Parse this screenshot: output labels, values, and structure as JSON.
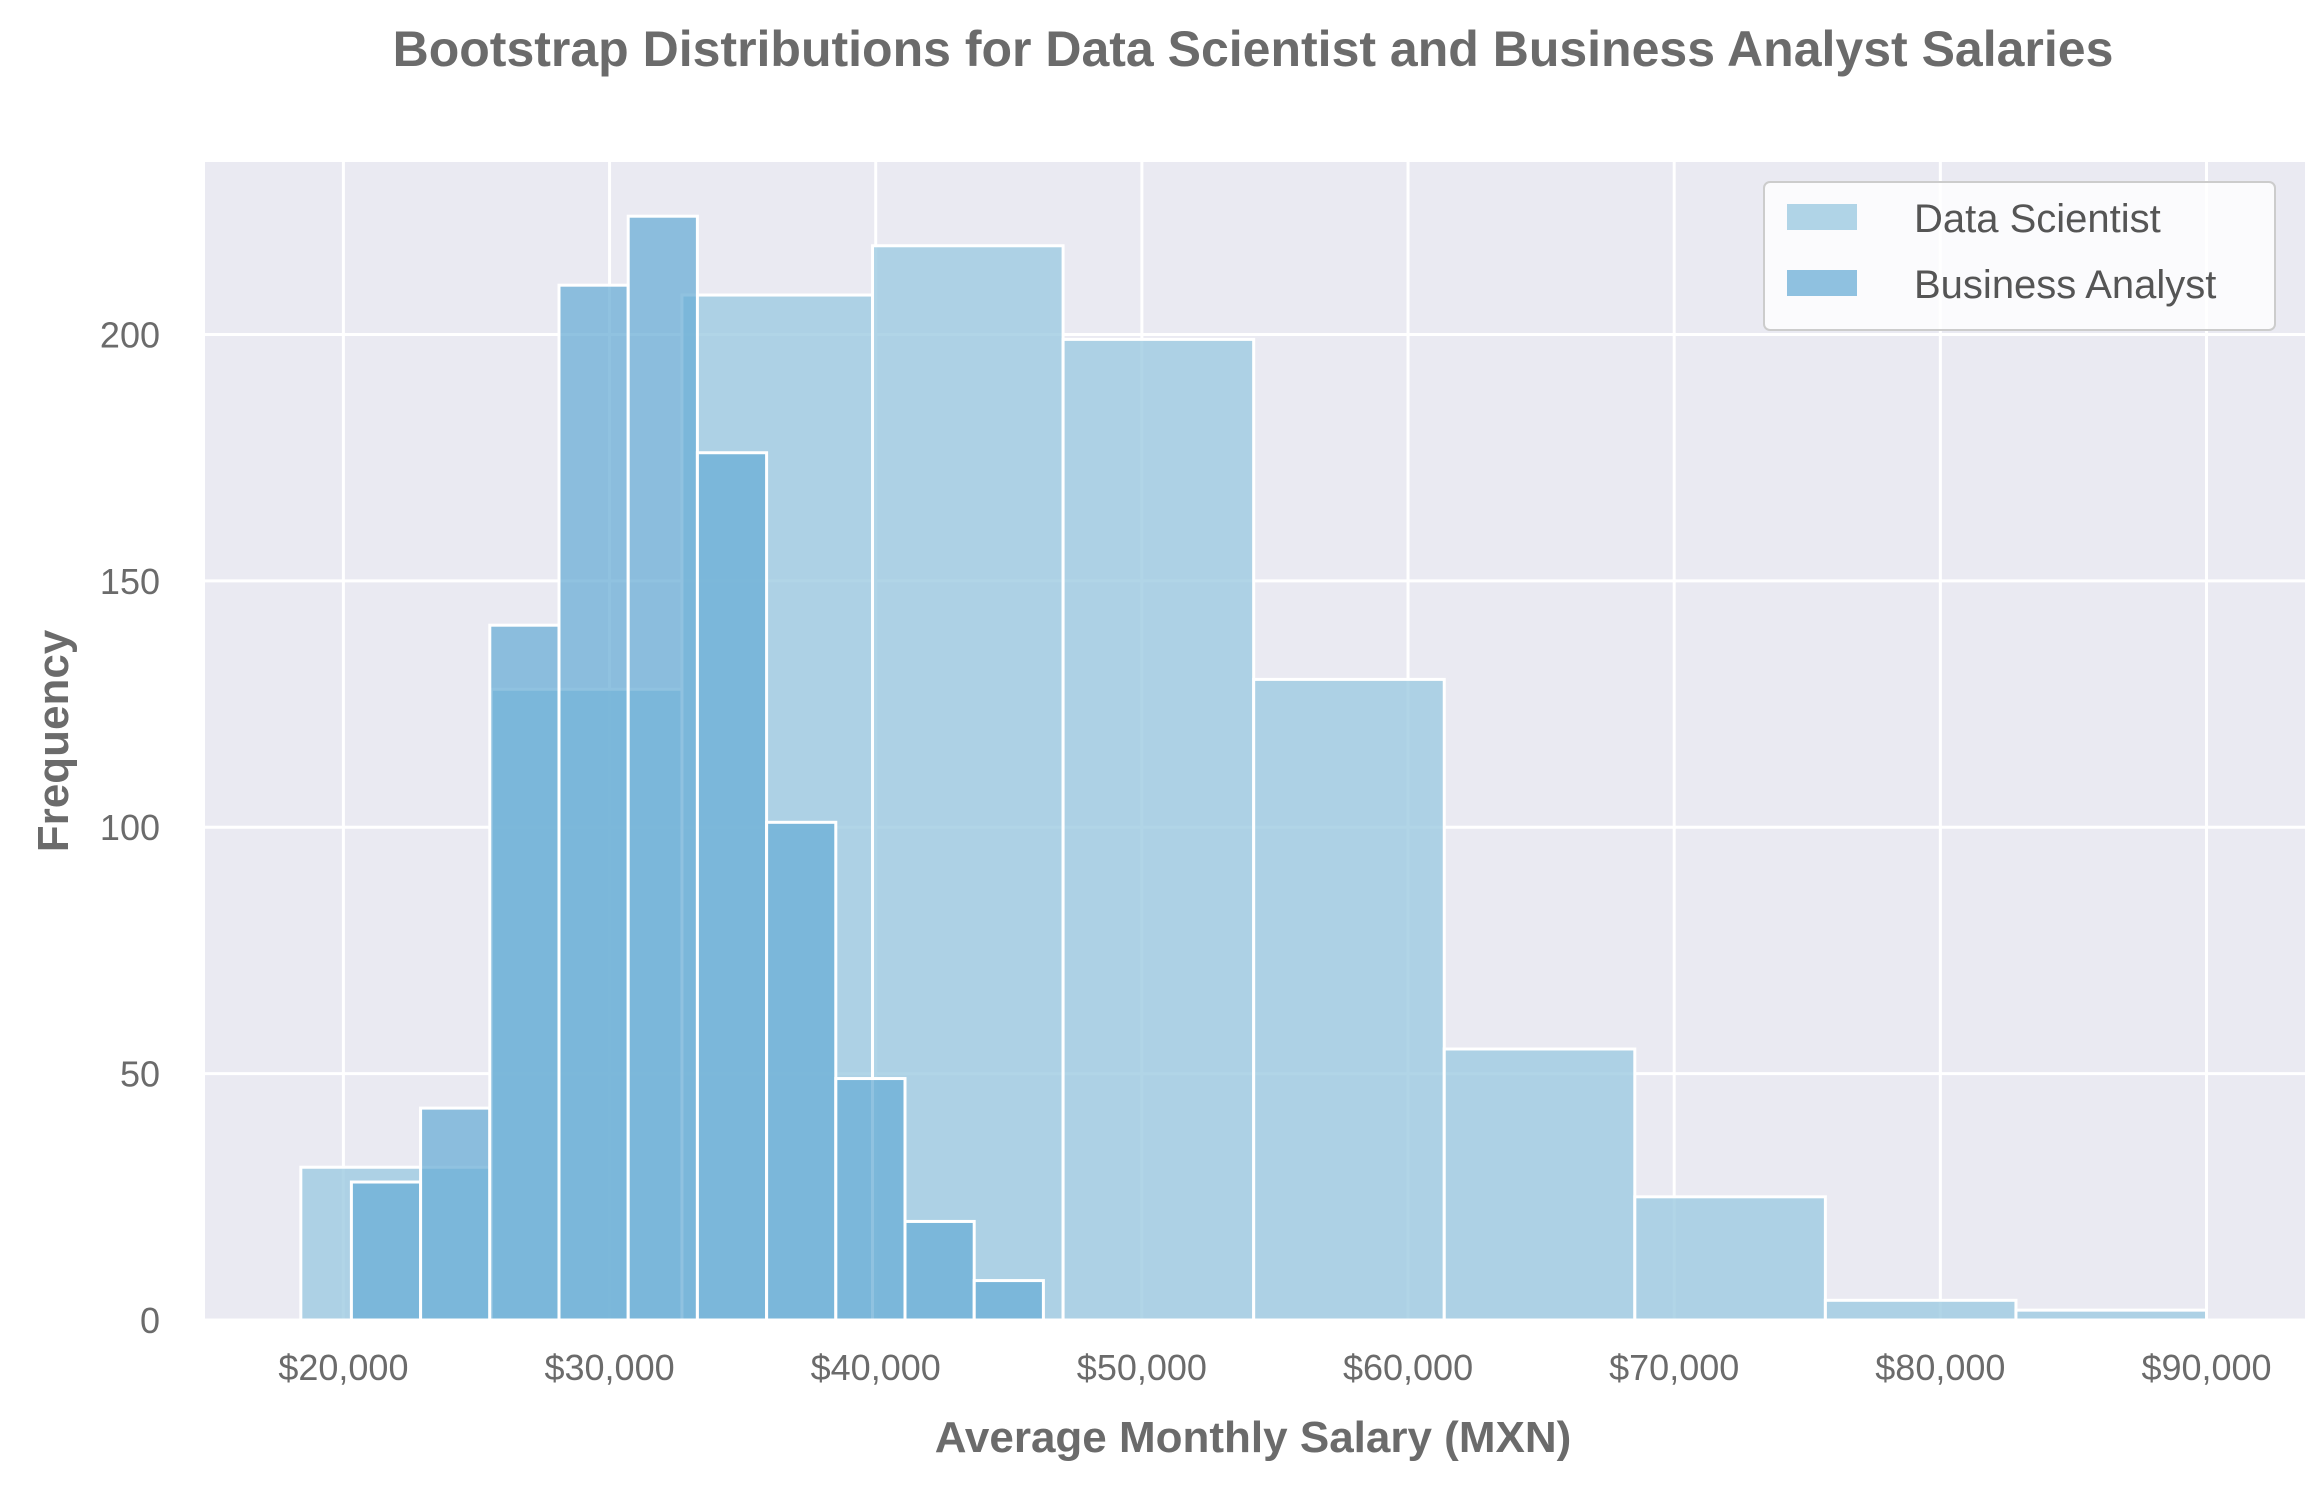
{
  "chart_data": {
    "type": "bar",
    "title": "Bootstrap Distributions for Data Scientist and Business Analyst Salaries",
    "xlabel": "Average Monthly Salary (MXN)",
    "ylabel": "Frequency",
    "xlim": [
      14800,
      93700
    ],
    "ylim": [
      0,
      235
    ],
    "xticks": [
      20000,
      30000,
      40000,
      50000,
      60000,
      70000,
      80000,
      90000
    ],
    "xtick_labels": [
      "$20,000",
      "$30,000",
      "$40,000",
      "$50,000",
      "$60,000",
      "$70,000",
      "$80,000",
      "$90,000"
    ],
    "yticks": [
      0,
      50,
      100,
      150,
      200
    ],
    "ytick_labels": [
      "0",
      "50",
      "100",
      "150",
      "200"
    ],
    "grid": true,
    "legend_position": "top-right",
    "series": [
      {
        "name": "Data Scientist",
        "color": "#9ecae1",
        "bin_edges": [
          18400,
          25560,
          32720,
          39880,
          47040,
          54200,
          61360,
          68520,
          75680,
          82840,
          90000
        ],
        "values": [
          31,
          128,
          208,
          218,
          199,
          130,
          55,
          25,
          4,
          2
        ]
      },
      {
        "name": "Business Analyst",
        "color": "#6baed6",
        "bin_edges": [
          20300,
          22900,
          25500,
          28100,
          30700,
          33300,
          35900,
          38500,
          41100,
          43700,
          46300
        ],
        "values": [
          28,
          43,
          141,
          210,
          224,
          176,
          101,
          49,
          20,
          8
        ]
      }
    ]
  }
}
